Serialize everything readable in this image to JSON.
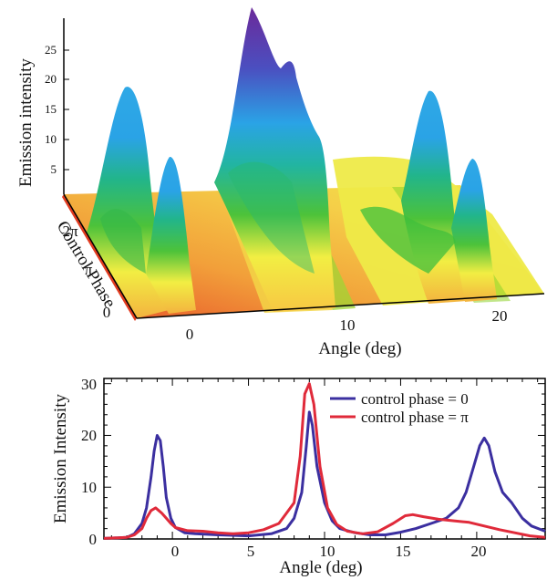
{
  "chart_data": [
    {
      "type": "surface",
      "zlabel": "Emission intensity",
      "xlabel": "Angle (deg)",
      "ylabel": "Control Phase",
      "zticks": [
        "5",
        "10",
        "15",
        "20",
        "25"
      ],
      "xticks": [
        "0",
        "10",
        "20"
      ],
      "yticks": [
        "0",
        "π",
        "2π"
      ],
      "zlim": [
        0,
        30
      ],
      "xlim": [
        -4,
        24
      ],
      "colormap": [
        "#e23b1f",
        "#f08a2a",
        "#f7c743",
        "#f2ee43",
        "#8ed12a",
        "#22b54a",
        "#25b7ae",
        "#2aa3e6",
        "#4b4fc0",
        "#7a2d8f"
      ],
      "peaks": [
        {
          "angle": -1,
          "phase_zero_intensity": 20
        },
        {
          "angle": 9,
          "phase_zero_intensity": 25,
          "phase_pi_intensity": 30
        },
        {
          "angle": 20.5,
          "phase_zero_intensity": 20
        }
      ]
    },
    {
      "type": "line",
      "xlabel": "Angle (deg)",
      "ylabel": "Emission Intensity",
      "xlim": [
        -4.5,
        24.5
      ],
      "ylim": [
        0,
        31
      ],
      "xticks": [
        "0",
        "5",
        "10",
        "15",
        "20"
      ],
      "yticks": [
        "0",
        "10",
        "20",
        "30"
      ],
      "series": [
        {
          "name": "control phase = 0",
          "color": "#3b2fa0",
          "x": [
            -4.5,
            -3,
            -2.5,
            -2,
            -1.7,
            -1.4,
            -1.2,
            -1.0,
            -0.8,
            -0.6,
            -0.4,
            -0.1,
            0.2,
            0.8,
            1.5,
            3,
            5,
            6.5,
            7.5,
            8.0,
            8.5,
            8.8,
            9.0,
            9.2,
            9.5,
            10.0,
            10.5,
            11,
            12,
            13,
            14,
            15,
            16,
            17,
            18,
            18.8,
            19.3,
            19.8,
            20.2,
            20.5,
            20.8,
            21.2,
            21.7,
            22.3,
            23,
            23.6,
            24.5
          ],
          "y": [
            0.1,
            0.3,
            1,
            3,
            6,
            12,
            17,
            20,
            19,
            14,
            8,
            4,
            2.2,
            1.2,
            1.0,
            0.8,
            0.6,
            1.0,
            2,
            4,
            9,
            18,
            24.5,
            22,
            14,
            7,
            3.5,
            2,
            1.2,
            0.8,
            0.8,
            1.3,
            2,
            3,
            4,
            6,
            9,
            14,
            18,
            19.5,
            18,
            13,
            9,
            7,
            4,
            2.5,
            1.5
          ]
        },
        {
          "name": "control phase = π",
          "color": "#e02a3a",
          "x": [
            -4.5,
            -3,
            -2.5,
            -2,
            -1.7,
            -1.4,
            -1.1,
            -0.9,
            -0.7,
            -0.4,
            -0.1,
            0.2,
            1,
            2,
            3,
            4,
            5,
            6,
            7,
            7.5,
            8.0,
            8.4,
            8.7,
            9.0,
            9.3,
            9.7,
            10.2,
            10.8,
            11.5,
            12.5,
            13.5,
            14.5,
            15.3,
            15.8,
            16.5,
            17.5,
            18.5,
            19.5,
            20.5,
            21.5,
            22.5,
            23.5,
            24.5
          ],
          "y": [
            0.1,
            0.3,
            0.8,
            2,
            4,
            5.5,
            6,
            5.5,
            5,
            4,
            3,
            2.2,
            1.6,
            1.5,
            1.2,
            1.0,
            1.2,
            1.8,
            3,
            5,
            7,
            16,
            28,
            30,
            26,
            14,
            6,
            2.8,
            1.5,
            1.0,
            1.4,
            3,
            4.5,
            4.7,
            4.3,
            3.8,
            3.5,
            3.2,
            2.5,
            1.8,
            1.2,
            0.6,
            0.3
          ]
        }
      ]
    }
  ]
}
